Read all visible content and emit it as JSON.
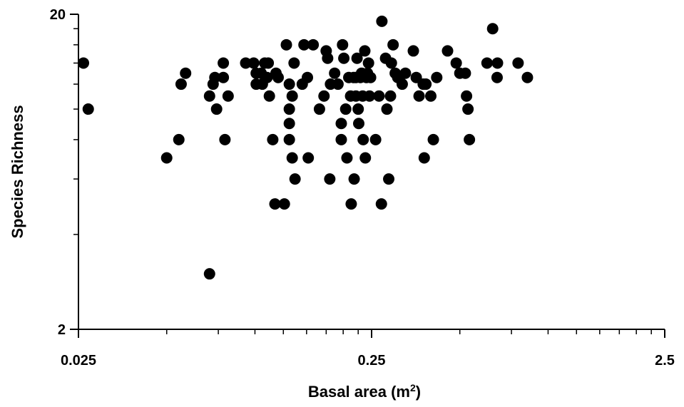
{
  "chart_data": {
    "type": "scatter",
    "title": "",
    "xlabel": "Basal area (m",
    "xlabel_superscript": "2",
    "xlabel_suffix": ")",
    "ylabel": "Species Richness",
    "x_scale": "log",
    "y_scale": "log",
    "xlim": [
      0.025,
      2.5
    ],
    "ylim": [
      2,
      20
    ],
    "x_ticks": [
      {
        "value": 0.025,
        "label": "0.025"
      },
      {
        "value": 0.25,
        "label": "0.25"
      },
      {
        "value": 2.5,
        "label": "2.5"
      }
    ],
    "y_ticks": [
      {
        "value": 2,
        "label": "2"
      },
      {
        "value": 20,
        "label": "20"
      }
    ],
    "grid": false,
    "marker_color": "#000000",
    "series": [
      {
        "points": [
          {
            "x": 0.026,
            "y": 14
          },
          {
            "x": 0.027,
            "y": 10
          },
          {
            "x": 0.05,
            "y": 7
          },
          {
            "x": 0.055,
            "y": 8
          },
          {
            "x": 0.056,
            "y": 12
          },
          {
            "x": 0.058,
            "y": 13
          },
          {
            "x": 0.07,
            "y": 3
          },
          {
            "x": 0.07,
            "y": 11
          },
          {
            "x": 0.072,
            "y": 12
          },
          {
            "x": 0.073,
            "y": 12.6
          },
          {
            "x": 0.074,
            "y": 10
          },
          {
            "x": 0.078,
            "y": 14
          },
          {
            "x": 0.078,
            "y": 12.6
          },
          {
            "x": 0.079,
            "y": 8
          },
          {
            "x": 0.081,
            "y": 11
          },
          {
            "x": 0.093,
            "y": 14
          },
          {
            "x": 0.099,
            "y": 14
          },
          {
            "x": 0.101,
            "y": 13
          },
          {
            "x": 0.101,
            "y": 12
          },
          {
            "x": 0.105,
            "y": 13
          },
          {
            "x": 0.106,
            "y": 12
          },
          {
            "x": 0.108,
            "y": 14
          },
          {
            "x": 0.11,
            "y": 12.6
          },
          {
            "x": 0.111,
            "y": 14
          },
          {
            "x": 0.112,
            "y": 11
          },
          {
            "x": 0.115,
            "y": 8
          },
          {
            "x": 0.117,
            "y": 5
          },
          {
            "x": 0.118,
            "y": 13
          },
          {
            "x": 0.12,
            "y": 12.6
          },
          {
            "x": 0.126,
            "y": 5
          },
          {
            "x": 0.128,
            "y": 16
          },
          {
            "x": 0.131,
            "y": 12
          },
          {
            "x": 0.131,
            "y": 10
          },
          {
            "x": 0.131,
            "y": 9
          },
          {
            "x": 0.131,
            "y": 8
          },
          {
            "x": 0.134,
            "y": 11
          },
          {
            "x": 0.134,
            "y": 7
          },
          {
            "x": 0.136,
            "y": 14
          },
          {
            "x": 0.137,
            "y": 6
          },
          {
            "x": 0.145,
            "y": 12
          },
          {
            "x": 0.147,
            "y": 16
          },
          {
            "x": 0.151,
            "y": 12.6
          },
          {
            "x": 0.152,
            "y": 7
          },
          {
            "x": 0.158,
            "y": 16
          },
          {
            "x": 0.166,
            "y": 10
          },
          {
            "x": 0.172,
            "y": 11
          },
          {
            "x": 0.175,
            "y": 15.3
          },
          {
            "x": 0.177,
            "y": 14.5
          },
          {
            "x": 0.18,
            "y": 6
          },
          {
            "x": 0.181,
            "y": 12
          },
          {
            "x": 0.187,
            "y": 13
          },
          {
            "x": 0.192,
            "y": 12
          },
          {
            "x": 0.197,
            "y": 8
          },
          {
            "x": 0.197,
            "y": 9
          },
          {
            "x": 0.199,
            "y": 16
          },
          {
            "x": 0.201,
            "y": 14.5
          },
          {
            "x": 0.204,
            "y": 10
          },
          {
            "x": 0.206,
            "y": 7
          },
          {
            "x": 0.209,
            "y": 12.6
          },
          {
            "x": 0.212,
            "y": 11
          },
          {
            "x": 0.213,
            "y": 5
          },
          {
            "x": 0.217,
            "y": 12.6
          },
          {
            "x": 0.218,
            "y": 6
          },
          {
            "x": 0.221,
            "y": 12.6
          },
          {
            "x": 0.221,
            "y": 11
          },
          {
            "x": 0.223,
            "y": 14.5
          },
          {
            "x": 0.225,
            "y": 10
          },
          {
            "x": 0.226,
            "y": 9
          },
          {
            "x": 0.229,
            "y": 12.6
          },
          {
            "x": 0.231,
            "y": 13
          },
          {
            "x": 0.233,
            "y": 11
          },
          {
            "x": 0.234,
            "y": 8
          },
          {
            "x": 0.237,
            "y": 15.3
          },
          {
            "x": 0.238,
            "y": 7
          },
          {
            "x": 0.24,
            "y": 12.6
          },
          {
            "x": 0.242,
            "y": 13
          },
          {
            "x": 0.244,
            "y": 14
          },
          {
            "x": 0.246,
            "y": 11
          },
          {
            "x": 0.248,
            "y": 12.6
          },
          {
            "x": 0.258,
            "y": 8
          },
          {
            "x": 0.265,
            "y": 11
          },
          {
            "x": 0.27,
            "y": 5
          },
          {
            "x": 0.271,
            "y": 19
          },
          {
            "x": 0.279,
            "y": 14.5
          },
          {
            "x": 0.282,
            "y": 10
          },
          {
            "x": 0.286,
            "y": 6
          },
          {
            "x": 0.29,
            "y": 11
          },
          {
            "x": 0.292,
            "y": 14
          },
          {
            "x": 0.296,
            "y": 16
          },
          {
            "x": 0.301,
            "y": 13
          },
          {
            "x": 0.307,
            "y": 12.6
          },
          {
            "x": 0.311,
            "y": 12.6
          },
          {
            "x": 0.318,
            "y": 12
          },
          {
            "x": 0.326,
            "y": 13
          },
          {
            "x": 0.347,
            "y": 15.3
          },
          {
            "x": 0.355,
            "y": 12.6
          },
          {
            "x": 0.363,
            "y": 11
          },
          {
            "x": 0.375,
            "y": 12
          },
          {
            "x": 0.378,
            "y": 7
          },
          {
            "x": 0.383,
            "y": 12
          },
          {
            "x": 0.398,
            "y": 11
          },
          {
            "x": 0.406,
            "y": 8
          },
          {
            "x": 0.417,
            "y": 12.6
          },
          {
            "x": 0.454,
            "y": 15.3
          },
          {
            "x": 0.486,
            "y": 14
          },
          {
            "x": 0.5,
            "y": 13
          },
          {
            "x": 0.522,
            "y": 13
          },
          {
            "x": 0.527,
            "y": 11
          },
          {
            "x": 0.533,
            "y": 10
          },
          {
            "x": 0.539,
            "y": 8
          },
          {
            "x": 0.619,
            "y": 14
          },
          {
            "x": 0.647,
            "y": 18
          },
          {
            "x": 0.67,
            "y": 12.6
          },
          {
            "x": 0.672,
            "y": 14
          },
          {
            "x": 0.79,
            "y": 14
          },
          {
            "x": 0.85,
            "y": 12.6
          }
        ]
      }
    ]
  }
}
